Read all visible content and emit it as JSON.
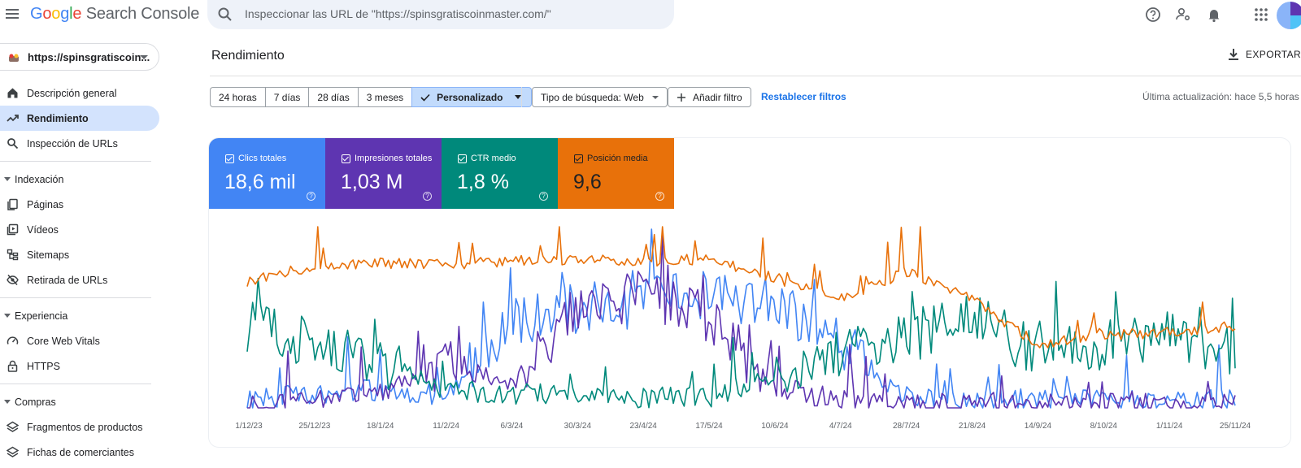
{
  "header": {
    "logo_google": "Google",
    "logo_product": "Search Console",
    "search_placeholder": "Inspeccionar las URL de \"https://spinsgratiscoinmaster.com/\"",
    "icons": [
      "help-icon",
      "manage-accounts-icon",
      "notifications-icon",
      "apps-icon"
    ]
  },
  "property": {
    "label": "https://spinsgratiscoin..."
  },
  "sidebar": {
    "items": [
      {
        "label": "Descripción general",
        "icon": "home-icon"
      },
      {
        "label": "Rendimiento",
        "icon": "trending-up-icon",
        "active": true
      },
      {
        "label": "Inspección de URLs",
        "icon": "search-icon"
      }
    ],
    "sections": [
      {
        "title": "Indexación",
        "items": [
          {
            "label": "Páginas",
            "icon": "pages-icon"
          },
          {
            "label": "Vídeos",
            "icon": "video-icon"
          },
          {
            "label": "Sitemaps",
            "icon": "sitemap-icon"
          },
          {
            "label": "Retirada de URLs",
            "icon": "visibility-off-icon"
          }
        ]
      },
      {
        "title": "Experiencia",
        "items": [
          {
            "label": "Core Web Vitals",
            "icon": "speed-icon"
          },
          {
            "label": "HTTPS",
            "icon": "lock-icon"
          }
        ]
      },
      {
        "title": "Compras",
        "items": [
          {
            "label": "Fragmentos de productos",
            "icon": "layers-icon"
          },
          {
            "label": "Fichas de comerciantes",
            "icon": "layers-icon"
          }
        ]
      }
    ]
  },
  "main": {
    "title": "Rendimiento",
    "export_label": "EXPORTAR",
    "date_ranges": [
      "24 horas",
      "7 días",
      "28 días",
      "3 meses"
    ],
    "custom_range": "Personalizado",
    "search_type": "Tipo de búsqueda: Web",
    "add_filter": "Añadir filtro",
    "reset_filters": "Restablecer filtros",
    "last_update": "Última actualización: hace 5,5 horas",
    "metrics": [
      {
        "label": "Clics totales",
        "value": "18,6 mil",
        "color": "#4285f4"
      },
      {
        "label": "Impresiones totales",
        "value": "1,03 M",
        "color": "#5e35b1"
      },
      {
        "label": "CTR medio",
        "value": "1,8 %",
        "color": "#00897b"
      },
      {
        "label": "Posición media",
        "value": "9,6",
        "color": "#e8710a"
      }
    ]
  },
  "chart_data": {
    "type": "line",
    "x": [
      "1/12/23",
      "25/12/23",
      "18/1/24",
      "11/2/24",
      "6/3/24",
      "30/3/24",
      "23/4/24",
      "17/5/24",
      "10/6/24",
      "4/7/24",
      "28/7/24",
      "21/8/24",
      "14/9/24",
      "8/10/24",
      "1/11/24",
      "25/11/24"
    ],
    "x_range": [
      "1/12/23",
      "30/11/24"
    ],
    "grid": false,
    "legend": "metric cards above chart",
    "series": [
      {
        "name": "Clics totales",
        "color": "#4285f4",
        "values": [
          5,
          8,
          10,
          7,
          48,
          55,
          58,
          62,
          58,
          35,
          6,
          4,
          5,
          4,
          4,
          5
        ],
        "normalized": true
      },
      {
        "name": "Impresiones totales",
        "color": "#5e35b1",
        "values": [
          2,
          4,
          8,
          25,
          12,
          55,
          62,
          50,
          12,
          4,
          3,
          2,
          2,
          2,
          2,
          2
        ],
        "normalized": true
      },
      {
        "name": "CTR medio",
        "color": "#00897b",
        "values": [
          45,
          35,
          25,
          10,
          8,
          7,
          6,
          6,
          18,
          30,
          38,
          50,
          30,
          35,
          40,
          30
        ],
        "normalized": true
      },
      {
        "name": "Posición media",
        "color": "#e8710a",
        "values": [
          70,
          78,
          80,
          79,
          81,
          82,
          81,
          82,
          72,
          60,
          75,
          60,
          35,
          40,
          42,
          45
        ],
        "normalized": true
      }
    ]
  }
}
